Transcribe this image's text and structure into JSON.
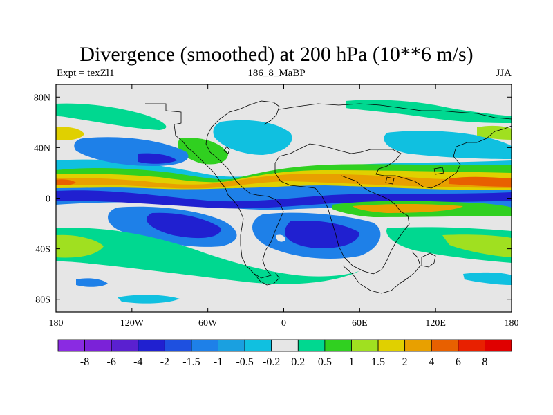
{
  "plot": {
    "title": "Divergence (smoothed) at 200 hPa (10**6 m/s)",
    "left_label": "Expt = texZl1",
    "center_label": "186_8_MaBP",
    "right_label": "JJA"
  },
  "map": {
    "projection": "cylindrical equidistant",
    "lon_range": [
      -180,
      180
    ],
    "lat_range": [
      -90,
      90
    ],
    "lat_ticks": [
      {
        "value": 80,
        "label": "80N"
      },
      {
        "value": 40,
        "label": "40N"
      },
      {
        "value": 0,
        "label": "0"
      },
      {
        "value": -40,
        "label": "40S"
      },
      {
        "value": -80,
        "label": "80S"
      }
    ],
    "lon_ticks": [
      {
        "value": -180,
        "label": "180"
      },
      {
        "value": -120,
        "label": "120W"
      },
      {
        "value": -60,
        "label": "60W"
      },
      {
        "value": 0,
        "label": "0"
      },
      {
        "value": 60,
        "label": "60E"
      },
      {
        "value": 120,
        "label": "120E"
      },
      {
        "value": 180,
        "label": "180"
      }
    ],
    "background_color": "#e6e6e6"
  },
  "colorbar": {
    "labels": [
      "-8",
      "-6",
      "-4",
      "-2",
      "-1.5",
      "-1",
      "-0.5",
      "-0.2",
      "0.2",
      "0.5",
      "1",
      "1.5",
      "2",
      "4",
      "6",
      "8"
    ],
    "colors": [
      "#8a2be2",
      "#7b22d8",
      "#5a20d0",
      "#2020d0",
      "#1e50e0",
      "#1e80e8",
      "#1aa0e0",
      "#10c0e0",
      "#e6e6e6",
      "#00d890",
      "#30d020",
      "#a0e020",
      "#e0d000",
      "#e8a000",
      "#e86000",
      "#e82000",
      "#e00000"
    ]
  }
}
